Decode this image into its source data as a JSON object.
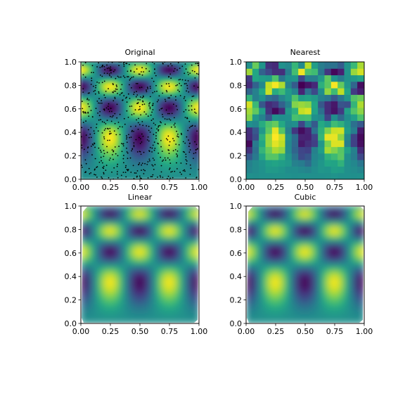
{
  "chart_data": [
    {
      "type": "heatmap",
      "title": "Original",
      "colormap": "viridis",
      "xlim": [
        0,
        1
      ],
      "ylim": [
        0,
        1
      ],
      "xticks": [
        "0.00",
        "0.25",
        "0.50",
        "0.75",
        "1.00"
      ],
      "yticks": [
        "0.0",
        "0.2",
        "0.4",
        "0.6",
        "0.8",
        "1.0"
      ],
      "field": "cos(4*pi*x)*sin(4*pi*y^2)-like pattern (peaks at x=0.5, troughs at x=0.25,0.75)",
      "scatter_points": "random black sample points overlaid"
    },
    {
      "type": "heatmap",
      "title": "Nearest",
      "colormap": "viridis",
      "xlim": [
        0,
        1
      ],
      "ylim": [
        0,
        1
      ],
      "xticks": [
        "0.00",
        "0.25",
        "0.50",
        "0.75",
        "1.00"
      ],
      "yticks": [
        "0.0",
        "0.2",
        "0.4",
        "0.6",
        "0.8",
        "1.0"
      ]
    },
    {
      "type": "heatmap",
      "title": "Linear",
      "colormap": "viridis",
      "xlim": [
        0,
        1
      ],
      "ylim": [
        0,
        1
      ],
      "xticks": [
        "0.00",
        "0.25",
        "0.50",
        "0.75",
        "1.00"
      ],
      "yticks": [
        "0.0",
        "0.2",
        "0.4",
        "0.6",
        "0.8",
        "1.0"
      ]
    },
    {
      "type": "heatmap",
      "title": "Cubic",
      "colormap": "viridis",
      "xlim": [
        0,
        1
      ],
      "ylim": [
        0,
        1
      ],
      "xticks": [
        "0.00",
        "0.25",
        "0.50",
        "0.75",
        "1.00"
      ],
      "yticks": [
        "0.0",
        "0.2",
        "0.4",
        "0.6",
        "0.8",
        "1.0"
      ]
    }
  ]
}
